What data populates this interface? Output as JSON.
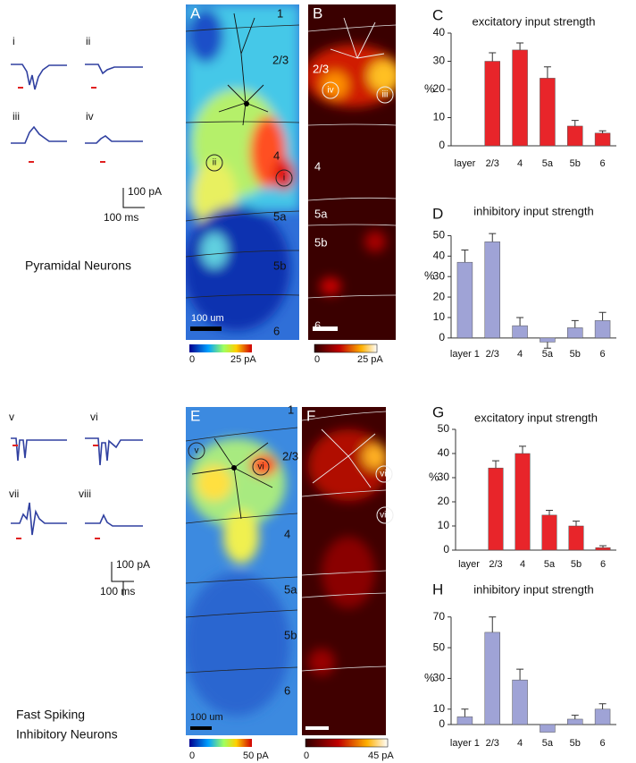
{
  "chart_data": [
    {
      "type": "bar",
      "title": "excitatory input strength",
      "ylabel": "%",
      "categories": [
        "layer",
        "2/3",
        "4",
        "5a",
        "5b",
        "6"
      ],
      "series": [
        {
          "color": "#e8252a",
          "values": [
            null,
            30,
            34,
            24,
            7,
            4.5
          ],
          "errors": [
            null,
            3,
            2.5,
            4,
            2,
            0.8
          ]
        }
      ],
      "ylim": [
        0,
        40
      ],
      "yticks": [
        0,
        10,
        20,
        30,
        40
      ]
    },
    {
      "type": "bar",
      "title": "inhibitory input strength",
      "ylabel": "%",
      "categories": [
        "layer 1",
        "2/3",
        "4",
        "5a",
        "5b",
        "6"
      ],
      "series": [
        {
          "color": "#9fa3d6",
          "values": [
            37,
            47,
            6,
            -2,
            5,
            8.5
          ],
          "errors": [
            6,
            4,
            4,
            3,
            3.5,
            4
          ]
        }
      ],
      "ylim": [
        -4,
        55
      ],
      "yticks": [
        0,
        10,
        20,
        30,
        40,
        50
      ]
    },
    {
      "type": "bar",
      "title": "excitatory input strength",
      "ylabel": "%",
      "categories": [
        "layer",
        "2/3",
        "4",
        "5a",
        "5b",
        "6"
      ],
      "series": [
        {
          "color": "#e8252a",
          "values": [
            null,
            34,
            40,
            14.5,
            10,
            1
          ],
          "errors": [
            null,
            3,
            3,
            2,
            2,
            0.8
          ]
        }
      ],
      "ylim": [
        0,
        50
      ],
      "yticks": [
        0,
        10,
        20,
        30,
        40,
        50
      ]
    },
    {
      "type": "bar",
      "title": "inhibitory input strength",
      "ylabel": "%",
      "categories": [
        "layer 1",
        "2/3",
        "4",
        "5a",
        "5b",
        "6"
      ],
      "series": [
        {
          "color": "#9fa3d6",
          "values": [
            5,
            60,
            29,
            -5,
            3.5,
            10
          ],
          "errors": [
            5,
            10,
            7,
            0,
            2.5,
            3.5
          ]
        }
      ],
      "ylim": [
        -7,
        78
      ],
      "yticks": [
        0,
        10,
        30,
        50,
        70
      ]
    }
  ],
  "panel_letters": [
    "A",
    "B",
    "C",
    "D",
    "E",
    "F",
    "G",
    "H"
  ],
  "traces_top": {
    "labels": [
      "i",
      "ii",
      "iii",
      "iv"
    ],
    "scale_current": "100 pA",
    "scale_time": "100 ms",
    "caption": [
      "Pyramidal Neurons"
    ]
  },
  "traces_bottom": {
    "labels": [
      "v",
      "vi",
      "vii",
      "viii"
    ],
    "scale_current": "100 pA",
    "scale_time": "100 ms",
    "caption": [
      "Fast Spiking",
      "Inhibitory Neurons"
    ]
  },
  "map_A": {
    "layers": [
      "1",
      "2/3",
      "4",
      "5a",
      "5b",
      "6"
    ],
    "sites": [
      "ii",
      "i"
    ],
    "scale": "100 um",
    "colorbar": [
      "0",
      "25 pA"
    ]
  },
  "map_B": {
    "layers": [
      "2/3",
      "4",
      "5a",
      "5b",
      "6"
    ],
    "sites": [
      "iv",
      "iii"
    ],
    "colorbar": [
      "0",
      "25 pA"
    ]
  },
  "map_E": {
    "layers": [
      "1",
      "2/3",
      "4",
      "5a",
      "5b",
      "6"
    ],
    "sites": [
      "v",
      "vi"
    ],
    "scale": "100 um",
    "colorbar": [
      "0",
      "50 pA"
    ]
  },
  "map_F": {
    "sites": [
      "vii",
      "viii"
    ],
    "colorbar": [
      "0",
      "45 pA"
    ]
  }
}
